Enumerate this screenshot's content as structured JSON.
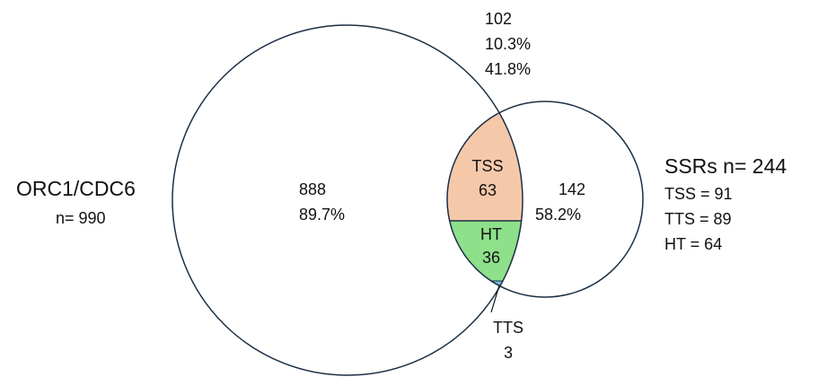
{
  "left_set": {
    "title": "ORC1/CDC6",
    "n": "n= 990"
  },
  "right_set": {
    "title": "SSRs n= 244",
    "lines": [
      "TSS = 91",
      "TTS = 89",
      "HT = 64"
    ]
  },
  "overlap_note": [
    "102",
    "10.3%",
    "41.8%"
  ],
  "left_only": [
    "888",
    "89.7%"
  ],
  "right_only": [
    "142",
    "58.2%"
  ],
  "lens": {
    "tss": [
      "TSS",
      "63"
    ],
    "ht": [
      "HT",
      "36"
    ],
    "tts": [
      "TTS",
      "3"
    ]
  }
}
